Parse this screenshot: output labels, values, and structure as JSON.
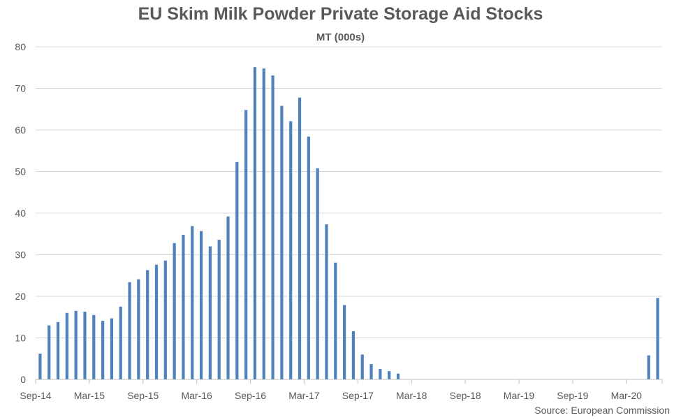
{
  "chart_data": {
    "type": "bar",
    "title": "EU Skim Milk Powder Private Storage Aid Stocks",
    "subtitle": "MT (000s)",
    "source": "Source: European Commission",
    "ylim": [
      0,
      80
    ],
    "yticks": [
      0,
      10,
      20,
      30,
      40,
      50,
      60,
      70,
      80
    ],
    "grid": true,
    "bar_color": "#4f81bd",
    "x_tick_labels": [
      "Sep-14",
      "Mar-15",
      "Sep-15",
      "Mar-16",
      "Sep-16",
      "Mar-17",
      "Sep-17",
      "Mar-18",
      "Sep-18",
      "Mar-19",
      "Sep-19",
      "Mar-20"
    ],
    "categories": [
      "Sep-14",
      "Oct-14",
      "Nov-14",
      "Dec-14",
      "Jan-15",
      "Feb-15",
      "Mar-15",
      "Apr-15",
      "May-15",
      "Jun-15",
      "Jul-15",
      "Aug-15",
      "Sep-15",
      "Oct-15",
      "Nov-15",
      "Dec-15",
      "Jan-16",
      "Feb-16",
      "Mar-16",
      "Apr-16",
      "May-16",
      "Jun-16",
      "Jul-16",
      "Aug-16",
      "Sep-16",
      "Oct-16",
      "Nov-16",
      "Dec-16",
      "Jan-17",
      "Feb-17",
      "Mar-17",
      "Apr-17",
      "May-17",
      "Jun-17",
      "Jul-17",
      "Aug-17",
      "Sep-17",
      "Oct-17",
      "Nov-17",
      "Dec-17",
      "Jan-18",
      "Feb-18",
      "Mar-18",
      "Apr-18",
      "May-18",
      "Jun-18",
      "Jul-18",
      "Aug-18",
      "Sep-18",
      "Oct-18",
      "Nov-18",
      "Dec-18",
      "Jan-19",
      "Feb-19",
      "Mar-19",
      "Apr-19",
      "May-19",
      "Jun-19",
      "Jul-19",
      "Aug-19",
      "Sep-19",
      "Oct-19",
      "Nov-19",
      "Dec-19",
      "Jan-20",
      "Feb-20",
      "Mar-20",
      "Apr-20",
      "May-20",
      "Jun-20"
    ],
    "values": [
      6.2,
      13.0,
      13.8,
      16.0,
      16.5,
      16.3,
      15.5,
      14.1,
      14.7,
      17.5,
      23.4,
      24.1,
      26.3,
      27.6,
      28.6,
      32.8,
      34.8,
      36.9,
      35.7,
      32.0,
      33.6,
      39.2,
      52.3,
      64.8,
      75.1,
      74.8,
      73.1,
      65.8,
      62.1,
      67.8,
      58.4,
      50.8,
      37.3,
      28.1,
      17.9,
      11.6,
      6.0,
      3.7,
      2.5,
      2.0,
      1.4,
      0,
      0,
      0,
      0,
      0,
      0,
      0,
      0,
      0,
      0,
      0,
      0,
      0,
      0,
      0,
      0,
      0,
      0,
      0,
      0,
      0,
      0,
      0,
      0,
      0,
      0,
      0,
      5.8,
      19.6
    ]
  }
}
